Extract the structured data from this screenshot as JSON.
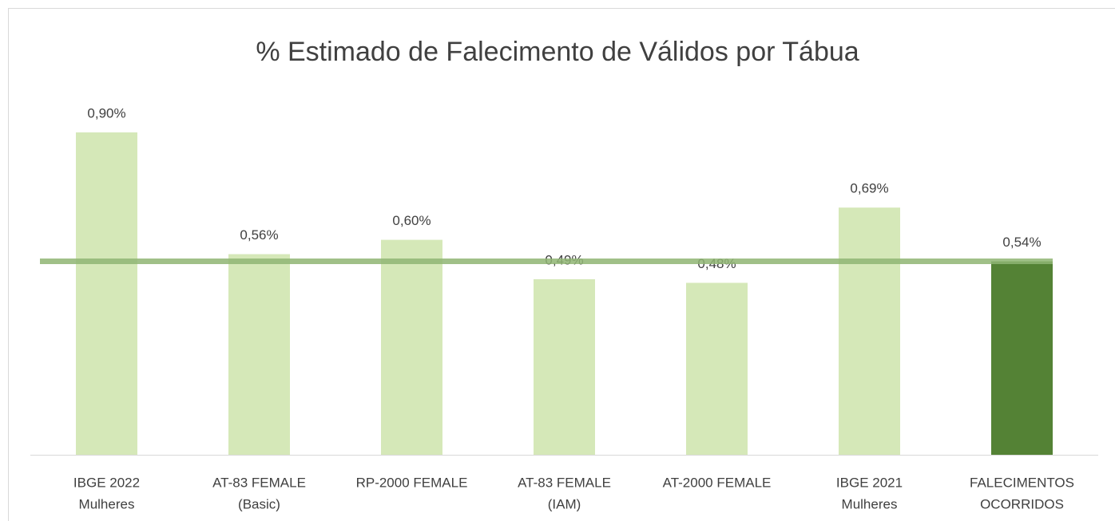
{
  "chart_data": {
    "type": "bar",
    "title": "% Estimado de Falecimento de Válidos por Tábua",
    "categories": [
      [
        "IBGE 2022",
        "Mulheres"
      ],
      [
        "AT-83 FEMALE",
        "(Basic)"
      ],
      [
        "RP-2000 FEMALE"
      ],
      [
        "AT-83 FEMALE",
        "(IAM)"
      ],
      [
        "AT-2000 FEMALE"
      ],
      [
        "IBGE 2021",
        "Mulheres"
      ],
      [
        "FALECIMENTOS",
        "OCORRIDOS"
      ]
    ],
    "values": [
      0.9,
      0.56,
      0.6,
      0.49,
      0.48,
      0.69,
      0.54
    ],
    "value_labels": [
      "0,90%",
      "0,56%",
      "0,60%",
      "0,49%",
      "0,48%",
      "0,69%",
      "0,54%"
    ],
    "colors": [
      "#d5e8b8",
      "#d5e8b8",
      "#d5e8b8",
      "#d5e8b8",
      "#d5e8b8",
      "#d5e8b8",
      "#548235"
    ],
    "reference_line_color": "#8fb573",
    "ylim": [
      0,
      1
    ]
  }
}
